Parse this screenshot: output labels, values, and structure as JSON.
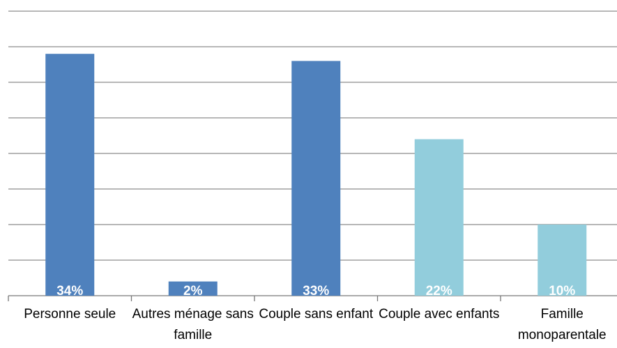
{
  "chart_data": {
    "type": "bar",
    "categories": [
      "Personne seule",
      "Autres ménage sans famille",
      "Couple sans enfant",
      "Couple avec enfants",
      "Famille monoparentale"
    ],
    "values": [
      34,
      2,
      33,
      22,
      10
    ],
    "value_labels": [
      "34%",
      "2%",
      "33%",
      "22%",
      "10%"
    ],
    "colors": [
      "#4f81bd",
      "#4f81bd",
      "#4f81bd",
      "#92cddc",
      "#92cddc"
    ],
    "ylim": [
      0,
      40
    ],
    "yticks": [
      0,
      5,
      10,
      15,
      20,
      25,
      30,
      35,
      40
    ],
    "grid": true
  }
}
